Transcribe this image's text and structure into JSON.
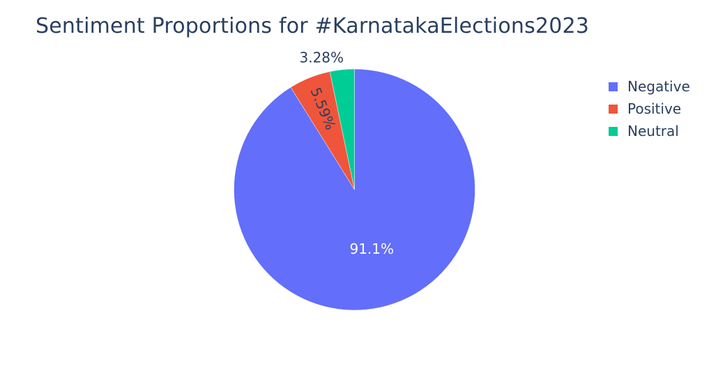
{
  "chart_data": {
    "type": "pie",
    "title": "Sentiment Proportions for #KarnatakaElections2023",
    "labels": [
      "Negative",
      "Positive",
      "Neutral"
    ],
    "values": [
      91.1,
      5.59,
      3.28
    ],
    "value_labels": [
      "91.1%",
      "5.59%",
      "3.28%"
    ],
    "colors": [
      "#636efa",
      "#ef553b",
      "#00cc96"
    ],
    "direction": "clockwise",
    "start": "top",
    "legend_position": "right"
  }
}
